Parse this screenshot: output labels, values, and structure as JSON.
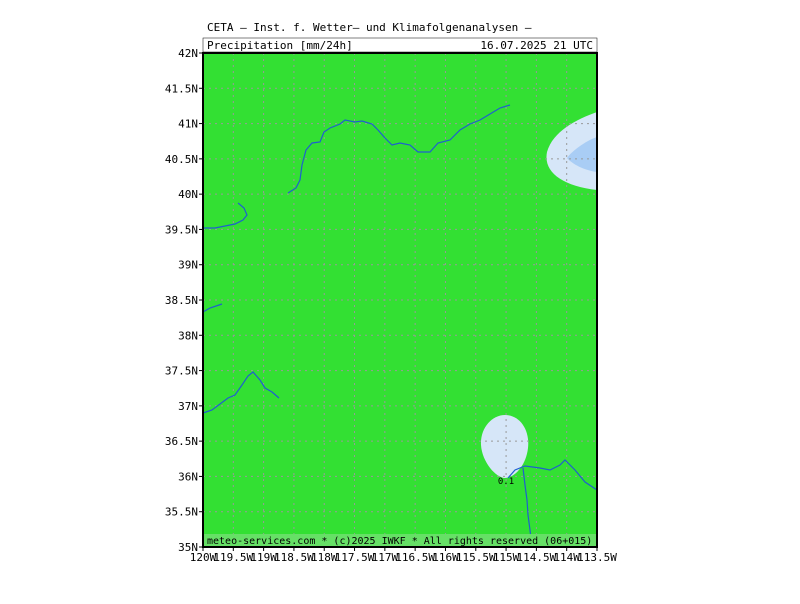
{
  "header": {
    "title": "CETA — Inst. f. Wetter— und Klimafolgenanalysen —",
    "parameter": "Precipitation [mm/24h]",
    "valid_time": "16.07.2025 21 UTC"
  },
  "lat_labels": [
    "42N",
    "41.5N",
    "41N",
    "40.5N",
    "40N",
    "39.5N",
    "39N",
    "38.5N",
    "38N",
    "37.5N",
    "37N",
    "36.5N",
    "36N",
    "35.5N",
    "35N"
  ],
  "lon_labels": [
    "120W",
    "119.5W",
    "119W",
    "118.5W",
    "118W",
    "117.5W",
    "117W",
    "116.5W",
    "116W",
    "115.5W",
    "115W",
    "114.5W",
    "114W",
    "113.5W"
  ],
  "contour_label": "0.1",
  "footer": "meteo-services.com * (c)2025 IWKF * All rights reserved (06+015)"
}
